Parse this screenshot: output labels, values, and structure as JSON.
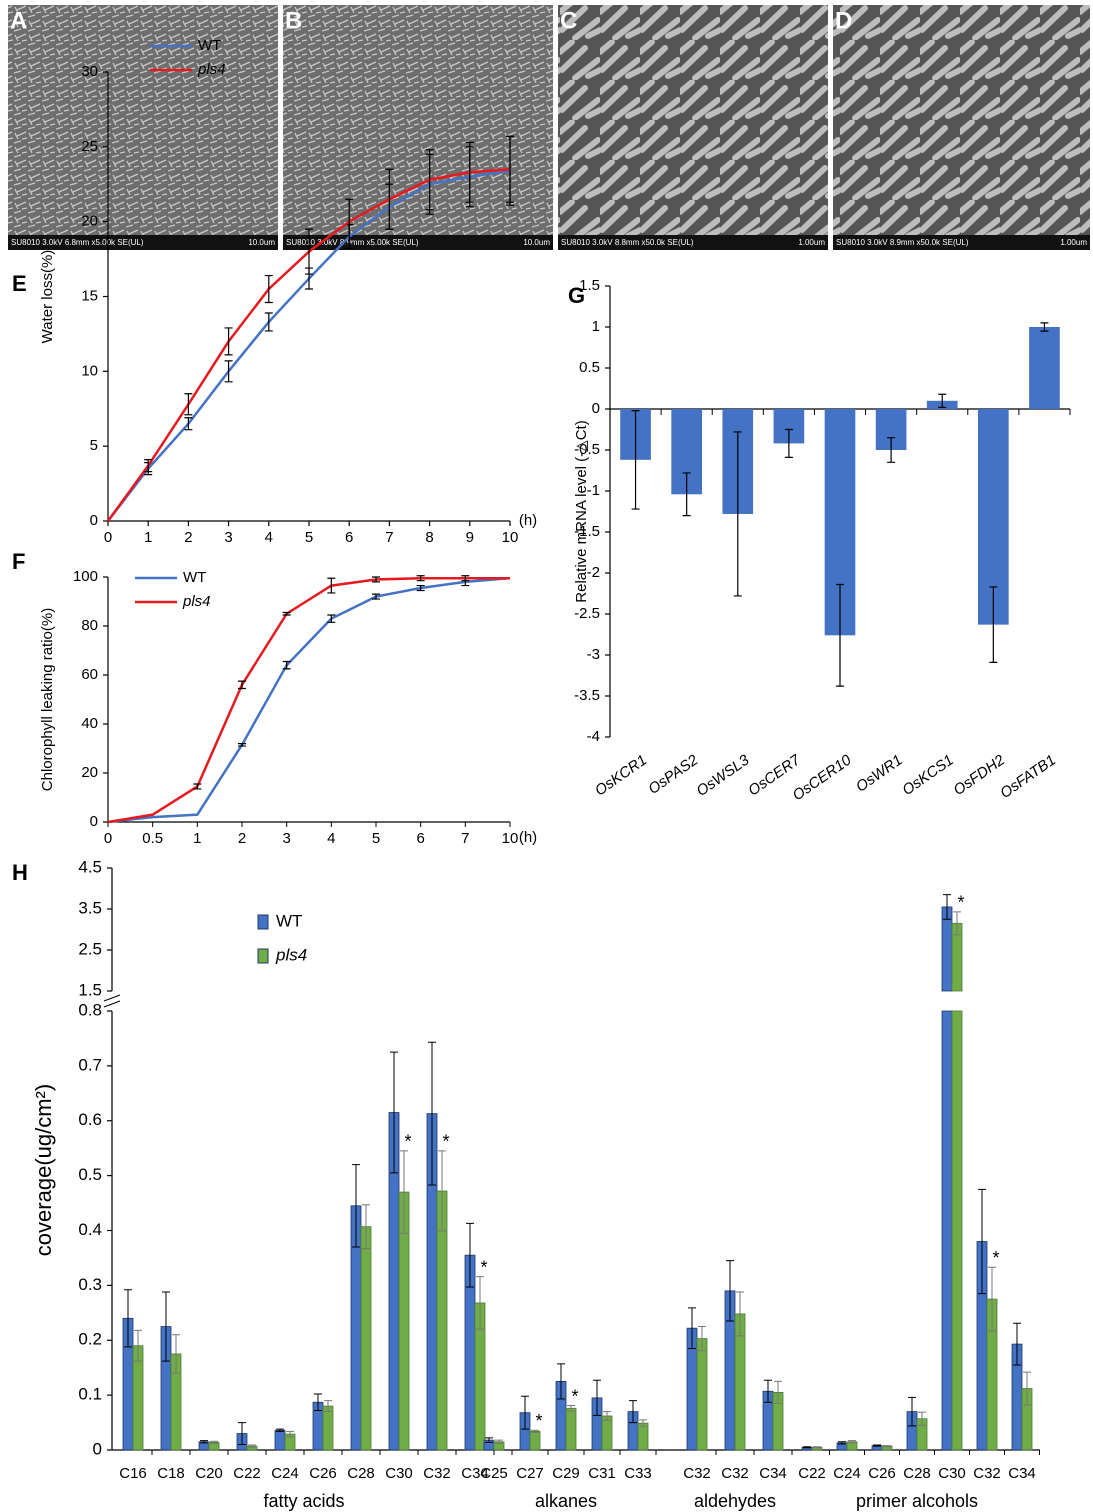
{
  "images": [
    {
      "label": "A",
      "caption": "SU8010 3.0kV 6.8mm x5.00k SE(UL)",
      "scale": "10.0um"
    },
    {
      "label": "B",
      "caption": "SU8010 3.0kV 8.9mm x5.00k SE(UL)",
      "scale": "10.0um"
    },
    {
      "label": "C",
      "caption": "SU8010 3.0kV 8.8mm x50.0k SE(UL)",
      "scale": "1.00um"
    },
    {
      "label": "D",
      "caption": "SU8010 3.0kV 8.9mm x50.0k SE(UL)",
      "scale": "1.00um"
    }
  ],
  "chart_data": [
    {
      "type": "line",
      "panel": "E",
      "y_label": "Water loss(%)",
      "x_label": "(h)",
      "x": [
        0,
        1,
        2,
        3,
        4,
        5,
        6,
        7,
        8,
        9,
        10
      ],
      "xlim": [
        0,
        10
      ],
      "xticks": [
        0,
        1,
        2,
        3,
        4,
        5,
        6,
        7,
        8,
        9,
        10
      ],
      "ylim": [
        0,
        30
      ],
      "yticks": [
        0,
        5,
        10,
        15,
        20,
        25,
        30
      ],
      "series": [
        {
          "name": "WT",
          "color": "#4472c4",
          "values": [
            0,
            3.5,
            6.5,
            10,
            13.3,
            16.2,
            19,
            21,
            22.5,
            23,
            23.4
          ],
          "errors": [
            0,
            0.4,
            0.4,
            0.7,
            0.6,
            0.7,
            0.8,
            1.5,
            2,
            2,
            2.3
          ]
        },
        {
          "name": "pls4",
          "color": "#e8191e",
          "values": [
            0,
            3.7,
            7.8,
            12,
            15.5,
            18,
            20,
            21.5,
            22.8,
            23.3,
            23.5
          ],
          "errors": [
            0,
            0.4,
            0.7,
            0.9,
            0.9,
            1.5,
            1.5,
            2,
            2,
            2,
            2.2
          ]
        }
      ]
    },
    {
      "type": "line",
      "panel": "F",
      "y_label": "Chlorophyll leaking ratio(%)",
      "x_label": "(h)",
      "categories": [
        "0",
        "0.5",
        "1",
        "2",
        "3",
        "4",
        "5",
        "6",
        "7",
        "10"
      ],
      "ylim": [
        0,
        100
      ],
      "yticks": [
        0,
        20,
        40,
        60,
        80,
        100
      ],
      "series": [
        {
          "name": "WT",
          "color": "#4472c4",
          "values": [
            0,
            2,
            3,
            31.5,
            64,
            83,
            92,
            95.5,
            98,
            99.5
          ],
          "errors": [
            0,
            0,
            0,
            0.5,
            1.5,
            1.5,
            1,
            1,
            1.5,
            0
          ]
        },
        {
          "name": "pls4",
          "color": "#e8191e",
          "values": [
            0,
            3,
            14.5,
            56,
            85,
            96.5,
            99,
            99.5,
            99.5,
            99.5
          ],
          "errors": [
            0,
            0,
            1,
            1.5,
            0.5,
            3,
            1,
            1,
            1,
            0
          ]
        }
      ]
    },
    {
      "type": "bar",
      "panel": "G",
      "y_label": "Relative mRNA level (-△Ct)",
      "color": "#4472c4",
      "categories": [
        "OsKCR1",
        "OsPAS2",
        "OsWSL3",
        "OsCER7",
        "OsCER10",
        "OsWR1",
        "OsKCS1",
        "OsFDH2",
        "OsFATB1"
      ],
      "values": [
        -0.62,
        -1.04,
        -1.28,
        -0.42,
        -2.76,
        -0.5,
        0.1,
        -2.63,
        1.0
      ],
      "errors": [
        0.6,
        0.26,
        1.0,
        0.17,
        0.62,
        0.15,
        0.08,
        0.46,
        0.05
      ],
      "ylim": [
        -4,
        1.5
      ],
      "yticks": [
        -4,
        -3.5,
        -3,
        -2.5,
        -2,
        -1.5,
        -1,
        -0.5,
        0,
        0.5,
        1,
        1.5
      ]
    },
    {
      "type": "broken-bar",
      "panel": "H",
      "y_label": "coverage(ug/cm²)",
      "ylim": [
        0,
        0.8
      ],
      "yticks": [
        0,
        0.1,
        0.2,
        0.3,
        0.4,
        0.5,
        0.6,
        0.7,
        0.8
      ],
      "ylim_upper": [
        1.5,
        4.5
      ],
      "yticks_upper": [
        1.5,
        2.5,
        3.5,
        4.5
      ],
      "series": [
        {
          "name": "WT",
          "color": "#4472c4"
        },
        {
          "name": "pls4",
          "color": "#70ad47"
        }
      ],
      "groups": [
        {
          "label": "fatty acids",
          "categories": [
            "C16",
            "C18",
            "C20",
            "C22",
            "C24",
            "C26",
            "C28",
            "C30",
            "C32",
            "C34"
          ],
          "values": [
            [
              0.24,
              0.225,
              0.015,
              0.03,
              0.036,
              0.087,
              0.445,
              0.615,
              0.613,
              0.355
            ],
            [
              0.19,
              0.175,
              0.014,
              0.007,
              0.029,
              0.08,
              0.407,
              0.47,
              0.472,
              0.268
            ]
          ],
          "errors": [
            [
              0.052,
              0.063,
              0.002,
              0.02,
              0.002,
              0.015,
              0.075,
              0.11,
              0.13,
              0.058
            ],
            [
              0.028,
              0.035,
              0.002,
              0.002,
              0.005,
              0.01,
              0.04,
              0.075,
              0.073,
              0.048
            ]
          ],
          "significance": [
            null,
            null,
            null,
            null,
            null,
            null,
            null,
            "*",
            "*",
            "*"
          ]
        },
        {
          "label": "alkanes",
          "categories": [
            "C25",
            "C27",
            "C29",
            "C31",
            "C33"
          ],
          "values": [
            [
              0.018,
              0.068,
              0.125,
              0.095,
              0.07
            ],
            [
              0.015,
              0.034,
              0.076,
              0.062,
              0.049
            ]
          ],
          "errors": [
            [
              0.004,
              0.03,
              0.032,
              0.032,
              0.02
            ],
            [
              0.003,
              0.002,
              0.005,
              0.008,
              0.006
            ]
          ],
          "significance": [
            null,
            "*",
            "*",
            null,
            null
          ]
        },
        {
          "label": "aldehydes",
          "categories": [
            "C32",
            "C32",
            "C34"
          ],
          "values": [
            [
              0.222,
              0.29,
              0.107
            ],
            [
              0.203,
              0.248,
              0.105
            ]
          ],
          "errors": [
            [
              0.037,
              0.055,
              0.02
            ],
            [
              0.022,
              0.04,
              0.02
            ]
          ],
          "significance": [
            null,
            null,
            null
          ]
        },
        {
          "label": "primer alcohols",
          "categories": [
            "C22",
            "C24",
            "C26",
            "C28",
            "C30",
            "C32",
            "C34"
          ],
          "values": [
            [
              0.005,
              0.013,
              0.008,
              0.07,
              3.55,
              0.38,
              0.193
            ],
            [
              0.005,
              0.015,
              0.007,
              0.057,
              3.15,
              0.275,
              0.112
            ]
          ],
          "errors": [
            [
              0.001,
              0.002,
              0.001,
              0.026,
              0.3,
              0.095,
              0.038
            ],
            [
              0.001,
              0.002,
              0.001,
              0.012,
              0.28,
              0.058,
              0.03
            ]
          ],
          "significance": [
            null,
            null,
            null,
            null,
            "*",
            "*",
            null
          ]
        }
      ]
    }
  ]
}
